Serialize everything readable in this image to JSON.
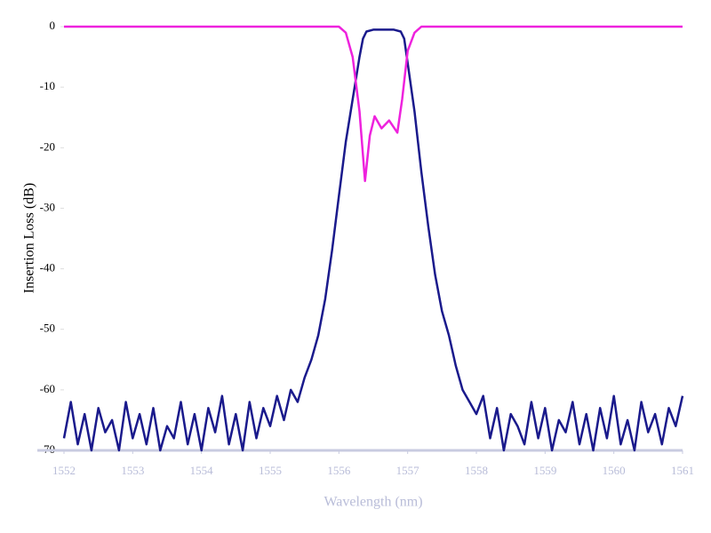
{
  "chart_data": {
    "type": "line",
    "y_label": "Insertion Loss (dB)",
    "x_label": "Wavelength (nm)",
    "xlim": [
      1552,
      1561
    ],
    "xticks": [
      1552,
      1553,
      1554,
      1555,
      1556,
      1557,
      1558,
      1559,
      1560,
      1561
    ],
    "ylim": [
      -70,
      0
    ],
    "yticks": [
      0,
      -10,
      -20,
      -30,
      -40,
      -50,
      -60,
      -70
    ],
    "series": [
      {
        "color": "#1a1a8c",
        "x": [
          1552.0,
          1552.1,
          1552.2,
          1552.3,
          1552.4,
          1552.5,
          1552.6,
          1552.7,
          1552.8,
          1552.9,
          1553.0,
          1553.1,
          1553.2,
          1553.3,
          1553.4,
          1553.5,
          1553.6,
          1553.7,
          1553.8,
          1553.9,
          1554.0,
          1554.1,
          1554.2,
          1554.3,
          1554.4,
          1554.5,
          1554.6,
          1554.7,
          1554.8,
          1554.9,
          1555.0,
          1555.1,
          1555.2,
          1555.3,
          1555.4,
          1555.5,
          1555.6,
          1555.7,
          1555.8,
          1555.9,
          1556.0,
          1556.1,
          1556.2,
          1556.3,
          1556.35,
          1556.4,
          1556.5,
          1556.6,
          1556.7,
          1556.8,
          1556.9,
          1556.95,
          1557.0,
          1557.1,
          1557.2,
          1557.3,
          1557.4,
          1557.5,
          1557.6,
          1557.7,
          1557.8,
          1557.9,
          1558.0,
          1558.1,
          1558.2,
          1558.3,
          1558.4,
          1558.5,
          1558.6,
          1558.7,
          1558.8,
          1558.9,
          1559.0,
          1559.1,
          1559.2,
          1559.3,
          1559.4,
          1559.5,
          1559.6,
          1559.7,
          1559.8,
          1559.9,
          1560.0,
          1560.1,
          1560.2,
          1560.3,
          1560.4,
          1560.5,
          1560.6,
          1560.7,
          1560.8,
          1560.9,
          1561.0
        ],
        "values": [
          -68,
          -62,
          -69,
          -64,
          -70,
          -63,
          -67,
          -65,
          -70,
          -62,
          -68,
          -64,
          -69,
          -63,
          -70,
          -66,
          -68,
          -62,
          -69,
          -64,
          -70,
          -63,
          -67,
          -61,
          -69,
          -64,
          -70,
          -62,
          -68,
          -63,
          -66,
          -61,
          -65,
          -60,
          -62,
          -58,
          -55,
          -51,
          -45,
          -37,
          -28,
          -19,
          -12,
          -5,
          -2,
          -0.8,
          -0.5,
          -0.5,
          -0.5,
          -0.5,
          -0.8,
          -2,
          -6,
          -14,
          -24,
          -33,
          -41,
          -47,
          -51,
          -56,
          -60,
          -62,
          -64,
          -61,
          -68,
          -63,
          -70,
          -64,
          -66,
          -69,
          -62,
          -68,
          -63,
          -70,
          -65,
          -67,
          -62,
          -69,
          -64,
          -70,
          -63,
          -68,
          -61,
          -69,
          -65,
          -70,
          -62,
          -67,
          -64,
          -69,
          -63,
          -66,
          -61
        ]
      },
      {
        "color": "#ee22dd",
        "x": [
          1552.0,
          1556.0,
          1556.1,
          1556.2,
          1556.3,
          1556.38,
          1556.45,
          1556.52,
          1556.62,
          1556.73,
          1556.85,
          1556.92,
          1557.0,
          1557.1,
          1557.2,
          1561.0
        ],
        "values": [
          0,
          0,
          -1,
          -5,
          -14,
          -25.5,
          -18,
          -14.8,
          -16.8,
          -15.5,
          -17.5,
          -12,
          -4,
          -1,
          0,
          0
        ]
      }
    ]
  }
}
